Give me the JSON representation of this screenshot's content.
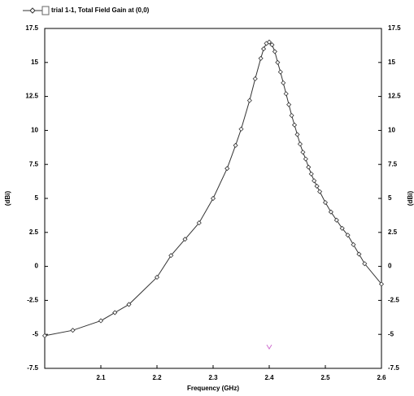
{
  "chart_data": {
    "type": "line",
    "legend_title": "trial 1-1, Total Field Gain at (0,0)",
    "xlabel": "Frequency (GHz)",
    "ylabel": "(dBi)",
    "y2label": "(dBi)",
    "xlim": [
      2.0,
      2.6
    ],
    "xticks": [
      2.1,
      2.2,
      2.3,
      2.4,
      2.5,
      2.6
    ],
    "ylim": [
      -7.5,
      17.5
    ],
    "yticks": [
      -7.5,
      -5,
      -2.5,
      0,
      2.5,
      5,
      7.5,
      10,
      12.5,
      15,
      17.5
    ],
    "y2lim": [
      -7.5,
      17.5
    ],
    "y2ticks": [
      -7.5,
      -5,
      -2.5,
      0,
      2.5,
      5,
      7.5,
      10,
      12.5,
      15,
      17.5
    ],
    "grid": false,
    "series": [
      {
        "name": "trial 1-1, Total Field Gain at (0,0)",
        "color": "#333333",
        "x": [
          2.0,
          2.05,
          2.1,
          2.125,
          2.15,
          2.2,
          2.225,
          2.25,
          2.275,
          2.3,
          2.325,
          2.34,
          2.35,
          2.365,
          2.375,
          2.385,
          2.39,
          2.395,
          2.4,
          2.405,
          2.41,
          2.415,
          2.42,
          2.425,
          2.43,
          2.435,
          2.44,
          2.445,
          2.45,
          2.455,
          2.46,
          2.465,
          2.47,
          2.475,
          2.48,
          2.485,
          2.49,
          2.5,
          2.51,
          2.52,
          2.53,
          2.54,
          2.55,
          2.56,
          2.57,
          2.6
        ],
        "values": [
          -5.1,
          -4.7,
          -4.0,
          -3.4,
          -2.8,
          -0.8,
          0.8,
          2.0,
          3.2,
          5.0,
          7.2,
          8.9,
          10.1,
          12.2,
          13.8,
          15.3,
          16.0,
          16.4,
          16.5,
          16.3,
          15.8,
          15.0,
          14.3,
          13.5,
          12.7,
          11.9,
          11.1,
          10.4,
          9.7,
          9.0,
          8.4,
          7.9,
          7.3,
          6.8,
          6.3,
          5.9,
          5.5,
          4.7,
          4.0,
          3.4,
          2.8,
          2.3,
          1.6,
          0.9,
          0.2,
          -1.3
        ]
      }
    ]
  }
}
